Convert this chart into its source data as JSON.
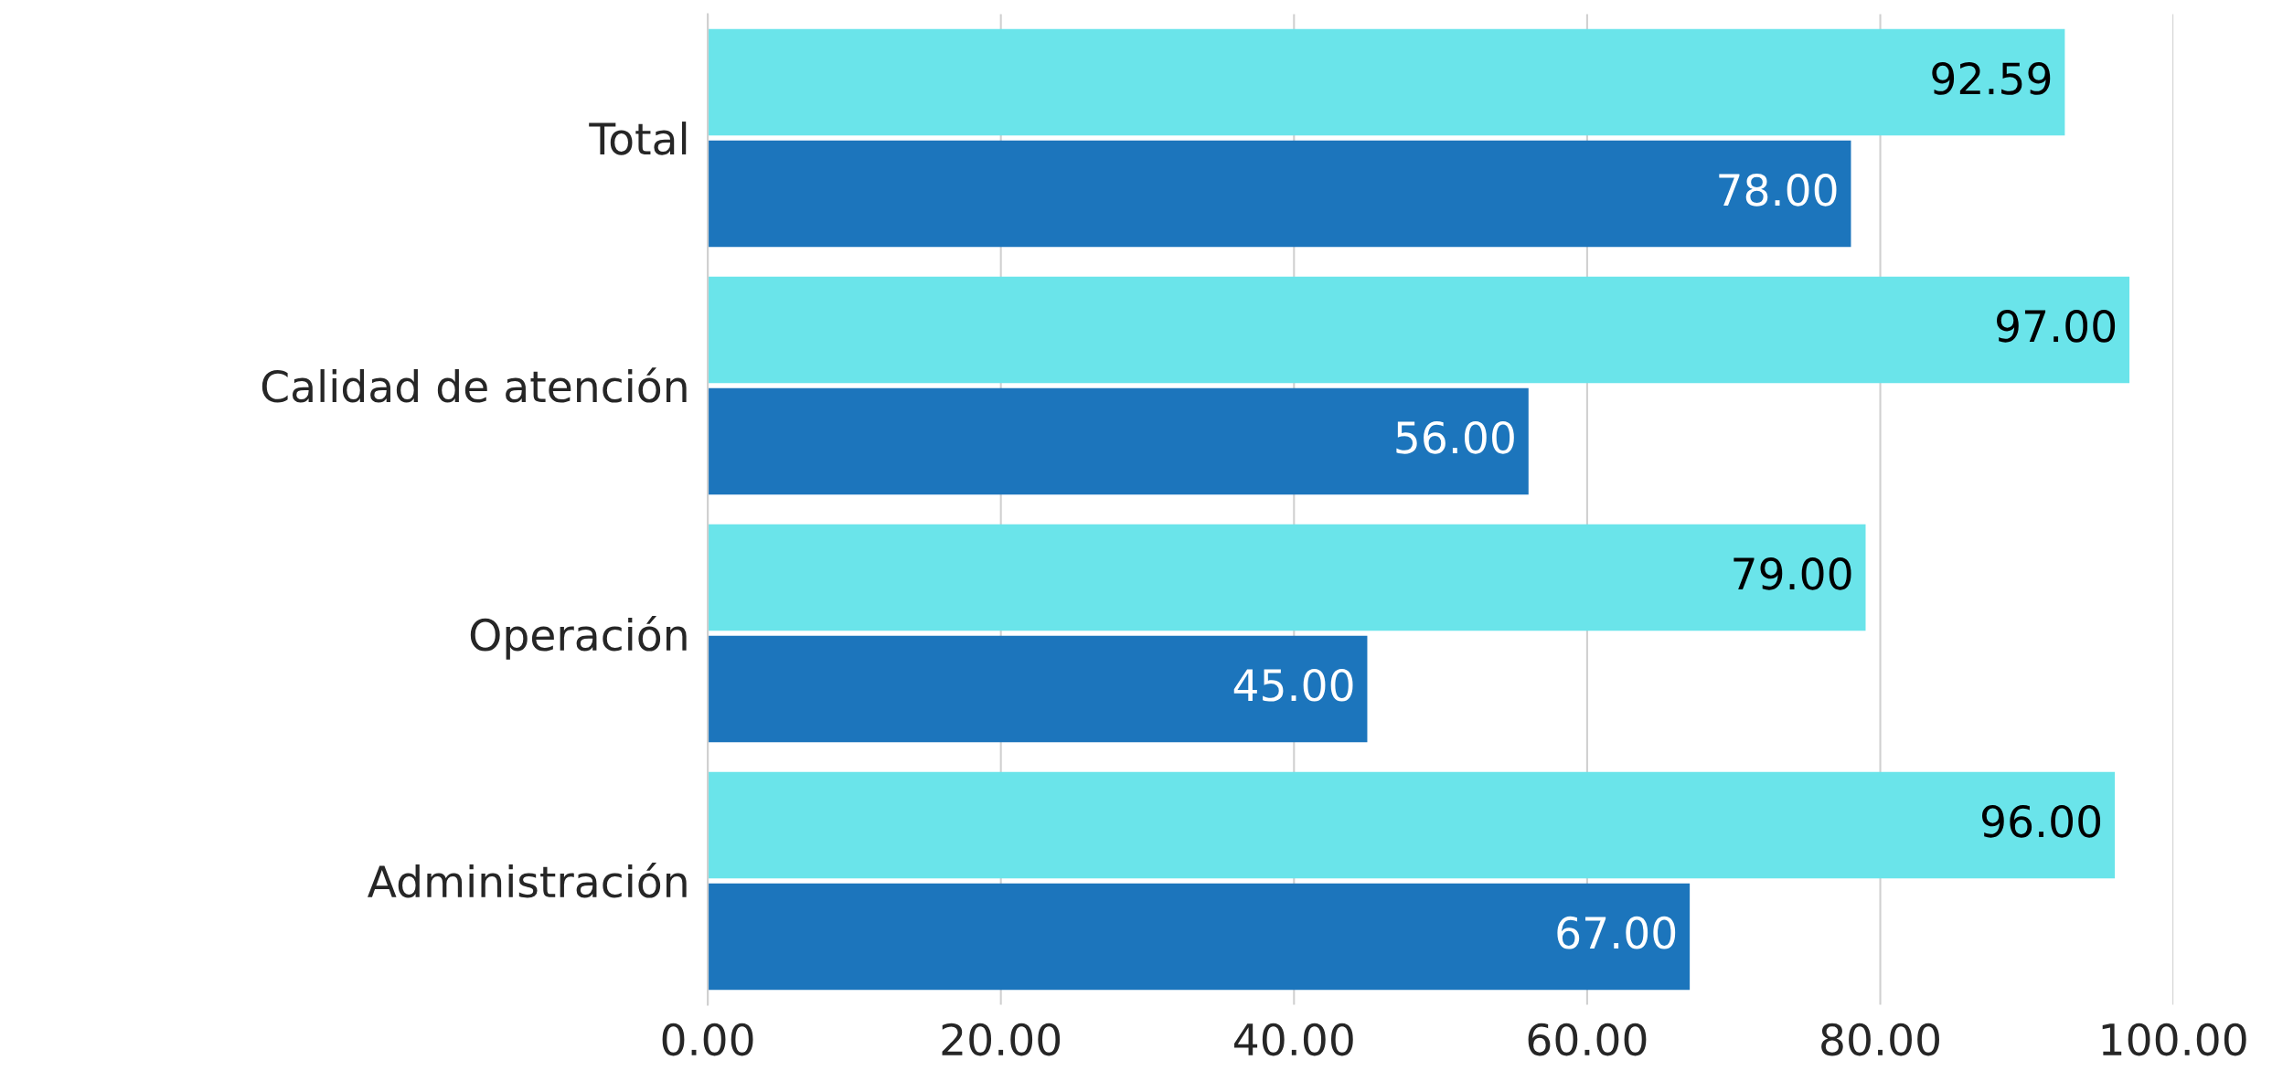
{
  "chart_data": {
    "type": "bar",
    "orientation": "horizontal",
    "categories": [
      "Total",
      "Calidad de atención",
      "Operación",
      "Administración"
    ],
    "series": [
      {
        "color": "#6ae4ea",
        "values": [
          92.59,
          97.0,
          79.0,
          96.0
        ],
        "value_labels": [
          "92.59",
          "97.00",
          "79.00",
          "96.00"
        ]
      },
      {
        "color": "#1c75bc",
        "values": [
          78.0,
          56.0,
          45.0,
          67.0
        ],
        "value_labels": [
          "78.00",
          "56.00",
          "45.00",
          "67.00"
        ]
      }
    ],
    "xlim": [
      0,
      100
    ],
    "xticks": [
      {
        "value": 0,
        "label": "0.00"
      },
      {
        "value": 20,
        "label": "20.00"
      },
      {
        "value": 40,
        "label": "40.00"
      },
      {
        "value": 60,
        "label": "60.00"
      },
      {
        "value": 80,
        "label": "80.00"
      },
      {
        "value": 100,
        "label": "100.00"
      }
    ],
    "grid": "x",
    "legend": false
  }
}
